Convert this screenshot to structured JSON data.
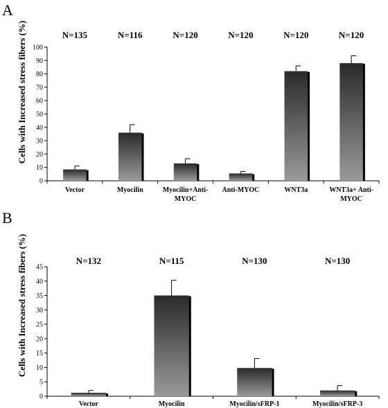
{
  "chart_data": [
    {
      "type": "bar",
      "panel_label": "A",
      "ylabel": "Cells with Increased stress fibers (%)",
      "categories": [
        "Vector",
        "Myocilin",
        "Myocilin+Anti-MYOC",
        "Anti-MYOC",
        "WNT3a",
        "WNT3a+ Anti-MYOC"
      ],
      "category_lines": [
        [
          "Vector"
        ],
        [
          "Myocilin"
        ],
        [
          "Myocilin+Anti-",
          "MYOC"
        ],
        [
          "Anti-MYOC"
        ],
        [
          "WNT3a"
        ],
        [
          "WNT3a+ Anti-",
          "MYOC"
        ]
      ],
      "n_labels": [
        "N=135",
        "N=116",
        "N=120",
        "N=120",
        "N=120",
        "N=120"
      ],
      "values": [
        8.5,
        36,
        13,
        5.5,
        82,
        88
      ],
      "errors": [
        2.5,
        6,
        3.5,
        1.5,
        4,
        5.5
      ],
      "ylim": [
        0,
        100
      ],
      "yticks": [
        0,
        10,
        20,
        30,
        40,
        50,
        60,
        70,
        80,
        90,
        100
      ],
      "grid": false,
      "colors": {
        "bar_top": "#2a2a2a",
        "bar_bottom": "#9a9a9a",
        "bar_shadow": "#000000"
      }
    },
    {
      "type": "bar",
      "panel_label": "B",
      "ylabel": "Cells with Increased stress fibers (%)",
      "categories": [
        "Vector",
        "Myocilin",
        "Myocilin/sFRP-1",
        "Myocilin/sFRP-3"
      ],
      "category_lines": [
        [
          "Vector"
        ],
        [
          "Myocilin"
        ],
        [
          "Myocilin/sFRP-1"
        ],
        [
          "Myocilin/sFRP-3"
        ]
      ],
      "n_labels": [
        "N=132",
        "N=115",
        "N=130",
        "N=130"
      ],
      "values": [
        1.2,
        35,
        9.8,
        2
      ],
      "errors": [
        0.8,
        5.3,
        3.3,
        1.7
      ],
      "ylim": [
        0,
        45
      ],
      "yticks": [
        0,
        5,
        10,
        15,
        20,
        25,
        30,
        35,
        40,
        45
      ],
      "grid": false,
      "colors": {
        "bar_top": "#2a2a2a",
        "bar_bottom": "#9a9a9a",
        "bar_shadow": "#000000"
      }
    }
  ]
}
